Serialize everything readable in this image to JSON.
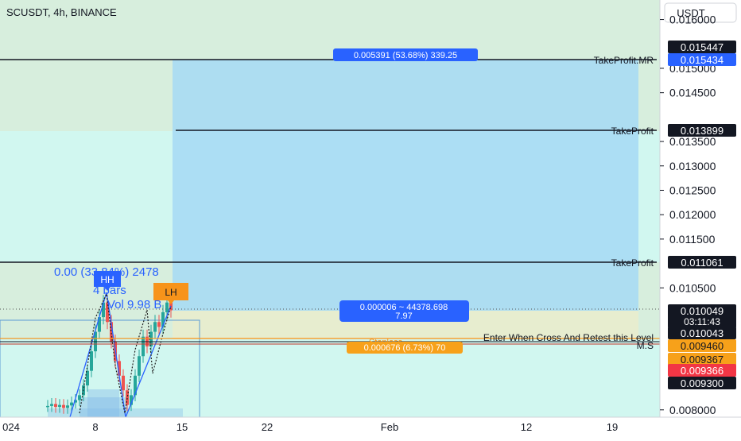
{
  "header": {
    "symbol_title": "SCUSDT, 4h, BINANCE",
    "currency_button": "USDT"
  },
  "colors": {
    "green_zone": "#d7eedd",
    "mint_zone": "#d1f7f0",
    "beige_zone": "#e9ecd5",
    "target_box": "#a6d9f5",
    "stop_box": "#e9eccd",
    "candle_up": "#26a69a",
    "candle_down": "#ef5350",
    "pattern_blue": "#2962ff",
    "pattern_orange": "#f7931a",
    "label_black": "#131722",
    "label_red": "#f23645",
    "label_orange": "#f7a11a"
  },
  "chart_data": {
    "type": "candlestick",
    "title": "SCUSDT, 4h, BINANCE",
    "ylim": [
      0.00785,
      0.0164
    ],
    "y_ticks": [
      "0.016000",
      "0.015000",
      "0.014500",
      "0.013500",
      "0.013000",
      "0.012500",
      "0.012000",
      "0.011500",
      "0.010500",
      "0.008000"
    ],
    "x_ticks": [
      {
        "label": "024",
        "x_date": "2024-01-01"
      },
      {
        "label": "8",
        "x_date": "2024-01-08"
      },
      {
        "label": "15",
        "x_date": "2024-01-15"
      },
      {
        "label": "22",
        "x_date": "2024-01-22"
      },
      {
        "label": "Feb",
        "x_date": "2024-02-01"
      },
      {
        "label": "12",
        "x_date": "2024-02-12"
      },
      {
        "label": "19",
        "x_date": "2024-02-19"
      }
    ],
    "closes": [
      0.00808,
      0.00812,
      0.00806,
      0.0081,
      0.00804,
      0.00809,
      0.00815,
      0.0082,
      0.0083,
      0.0085,
      0.0088,
      0.0092,
      0.0096,
      0.0099,
      0.0102,
      0.0098,
      0.0094,
      0.009,
      0.0087,
      0.0084,
      0.0081,
      0.0083,
      0.0087,
      0.0091,
      0.0095,
      0.0093,
      0.0096,
      0.0098,
      0.0097,
      0.01,
      0.0102,
      0.01004
    ],
    "horizontal_levels": [
      {
        "name": "TakeProfit.MR",
        "value": 0.01544,
        "label": "TakeProfit.MR"
      },
      {
        "name": "TakeProfit 2",
        "value": 0.013899,
        "label": "TakeProfit"
      },
      {
        "name": "TakeProfit 1",
        "value": 0.011061,
        "label": "TakeProfit"
      },
      {
        "name": "Entry",
        "value": 0.009415,
        "label": "Enter When Cross And Retest this Level"
      },
      {
        "name": "M.S",
        "value": 0.009325,
        "label": "M.S"
      }
    ],
    "price_labels": [
      {
        "text": "0.015447",
        "value": 0.015447,
        "style": "black"
      },
      {
        "text": "0.015434",
        "value": 0.015434,
        "style": "blue"
      },
      {
        "text": "0.013899",
        "value": 0.013899,
        "style": "black"
      },
      {
        "text": "0.011061",
        "value": 0.011061,
        "style": "black"
      },
      {
        "text": "0.010049",
        "value": 0.010049,
        "style": "black",
        "subtext": "03:11:43"
      },
      {
        "text": "0.010043",
        "value": 0.010043,
        "style": "black"
      },
      {
        "text": "0.009460",
        "value": 0.00946,
        "style": "orange"
      },
      {
        "text": "0.009367",
        "value": 0.009367,
        "style": "orange"
      },
      {
        "text": "0.009366",
        "value": 0.009366,
        "style": "red"
      },
      {
        "text": "0.009300",
        "value": 0.0093,
        "style": "black"
      }
    ],
    "annotations": {
      "target_measure": "0.005391 (53.68%) 339.25",
      "mid_measure_line1": "0.000006 ~ 44378.698",
      "mid_measure_line2": "7.97",
      "stoploss_label": "Stoploss",
      "stoploss_measure": "0.000676 (6.73%) 70",
      "hh_label": "HH",
      "lh_label": "LH",
      "move_stats": "0.00 (33.84%) 2478",
      "bars_stats": "4 bars",
      "vol_stats": "Vol 9.98 B"
    }
  }
}
